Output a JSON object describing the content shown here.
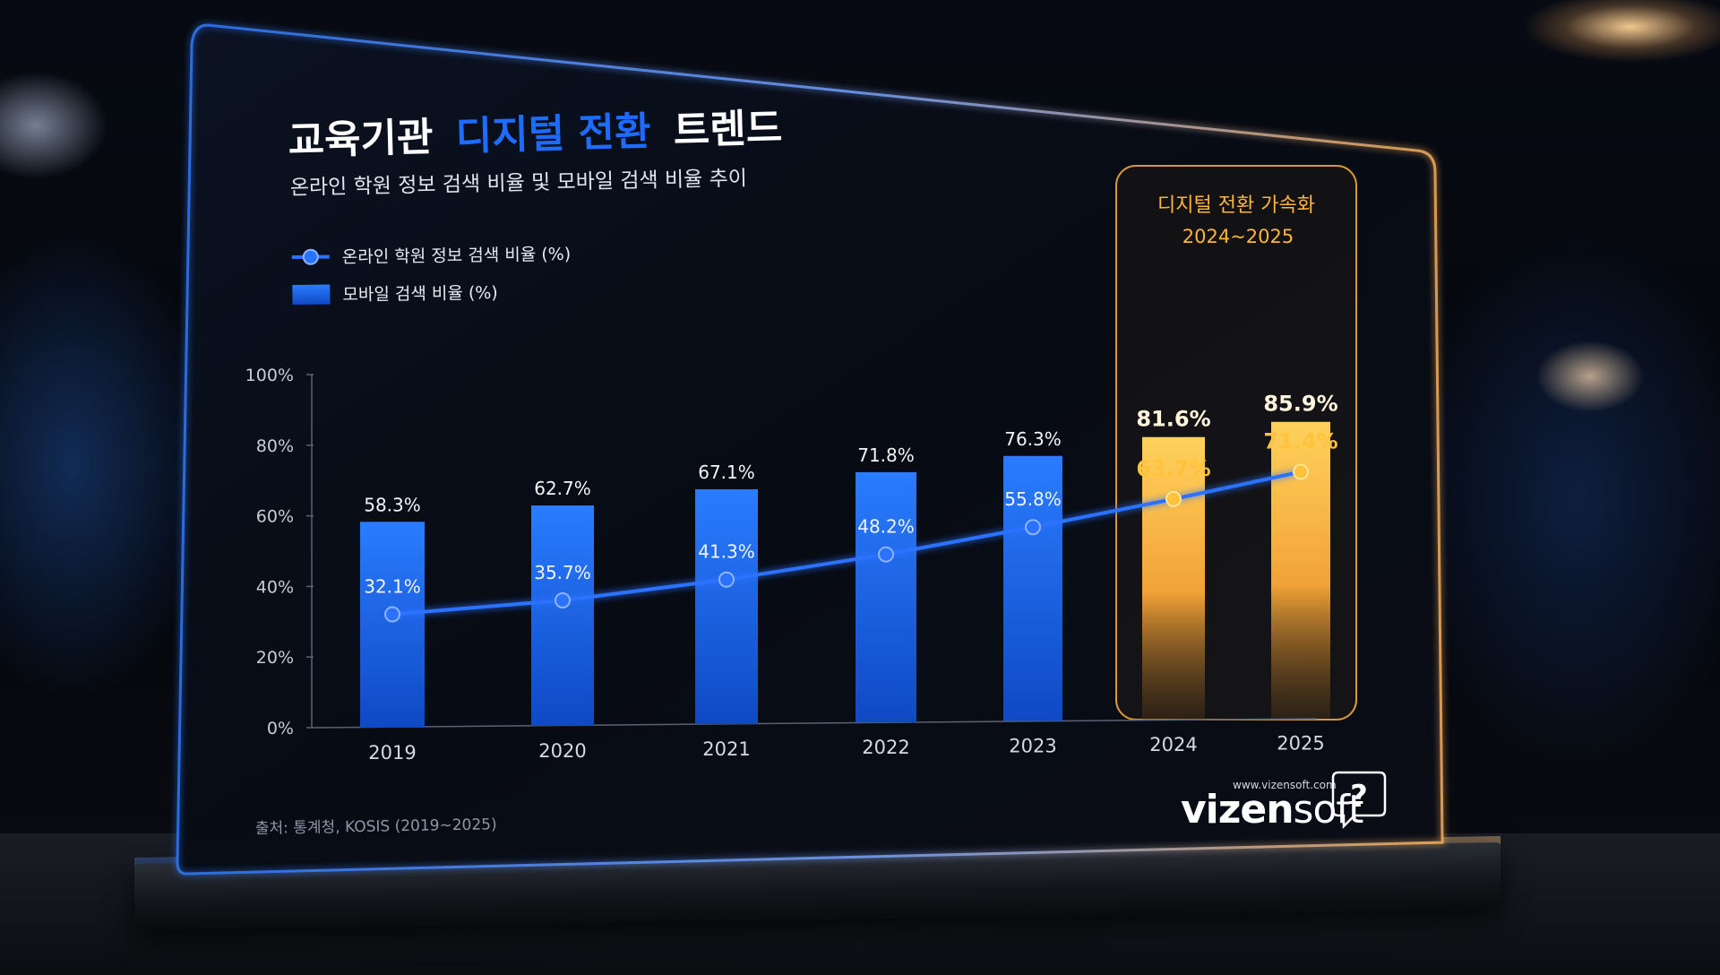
{
  "title": {
    "part1": "교육기관",
    "accent": "디지털 전환",
    "part2": "트렌드"
  },
  "subtitle": "온라인 학원 정보 검색 비율 및 모바일 검색 비율 추이",
  "legend": {
    "line": "온라인 학원 정보 검색 비율 (%)",
    "bar": "모바일 검색 비율 (%)"
  },
  "highlight": {
    "title": "디지털 전환 가속화",
    "years": "2024~2025"
  },
  "source": "출처: 통계청, KOSIS (2019~2025)",
  "brand": {
    "logo_main": "vizen",
    "logo_tail": "soft",
    "url": "www.vizensoft.com",
    "icon": "speech-bubble-question-icon"
  },
  "colors": {
    "accent_blue": "#1d6bff",
    "bar_blue": "#1f6fe8",
    "highlight_gold": "#ffb43a",
    "line_blue": "#2a72ff"
  },
  "chart_data": {
    "type": "bar",
    "categories": [
      "2019",
      "2020",
      "2021",
      "2022",
      "2023",
      "2024",
      "2025"
    ],
    "series": [
      {
        "name": "모바일 검색 비율 (%)",
        "kind": "bar",
        "values": [
          58.3,
          62.7,
          67.1,
          71.8,
          76.3,
          81.6,
          85.9
        ],
        "labels": [
          "58.3%",
          "62.7%",
          "67.1%",
          "71.8%",
          "76.3%",
          "81.6%",
          "85.9%"
        ]
      },
      {
        "name": "온라인 학원 정보 검색 비율 (%)",
        "kind": "line",
        "values": [
          32.1,
          35.7,
          41.3,
          48.2,
          55.8,
          63.7,
          71.4
        ],
        "labels": [
          "32.1%",
          "35.7%",
          "41.3%",
          "48.2%",
          "55.8%",
          "63.7%",
          "71.4%"
        ]
      }
    ],
    "y_ticks": [
      "0%",
      "20%",
      "40%",
      "60%",
      "80%",
      "100%"
    ],
    "ylim": [
      0,
      100
    ],
    "highlighted_categories": [
      "2024",
      "2025"
    ],
    "legend_position": "top-left",
    "grid": false
  }
}
